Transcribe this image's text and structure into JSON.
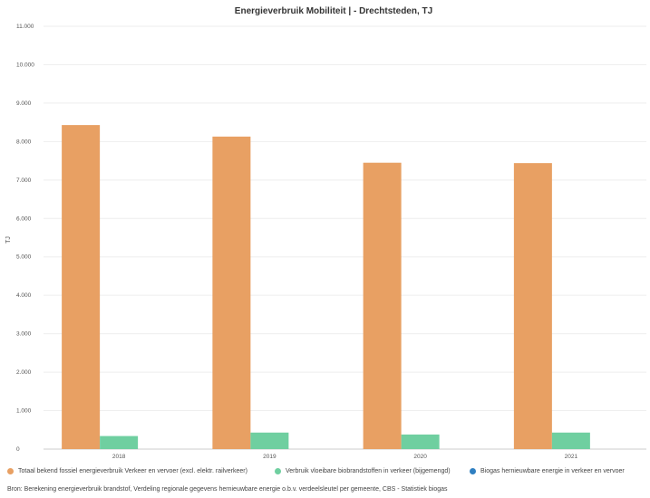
{
  "chart_data": {
    "type": "bar",
    "title": "Energieverbruik Mobiliteit | - Drechtsteden, TJ",
    "ylabel": "TJ",
    "xlabel": "",
    "ylim": [
      0,
      11000
    ],
    "yticks": [
      0,
      1000,
      2000,
      3000,
      4000,
      5000,
      6000,
      7000,
      8000,
      9000,
      10000,
      11000
    ],
    "ytick_labels": [
      "0",
      "1.000",
      "2.000",
      "3.000",
      "4.000",
      "5.000",
      "6.000",
      "7.000",
      "8.000",
      "9.000",
      "10.000",
      "11.000"
    ],
    "categories": [
      "2018",
      "2019",
      "2020",
      "2021"
    ],
    "series": [
      {
        "name": "Totaal bekend fossiel energieverbruik Verkeer en vervoer (excl. elektr. railverkeer)",
        "color": "#e8a063",
        "values": [
          8430,
          8130,
          7450,
          7440
        ]
      },
      {
        "name": "Verbruik vloeibare biobrandstoffen in verkeer (bijgemengd)",
        "color": "#6fcfa0",
        "values": [
          340,
          430,
          380,
          430
        ]
      },
      {
        "name": "Biogas hernieuwbare energie in verkeer en vervoer",
        "color": "#2f7fc1",
        "values": [
          0,
          0,
          0,
          0
        ]
      }
    ],
    "grid": true,
    "legend_position": "bottom"
  },
  "source_text": "Bron: Berekening energieverbruik brandstof, Verdeling regionale gegevens hernieuwbare energie o.b.v. verdeelsleutel per gemeente, CBS - Statistiek biogas"
}
